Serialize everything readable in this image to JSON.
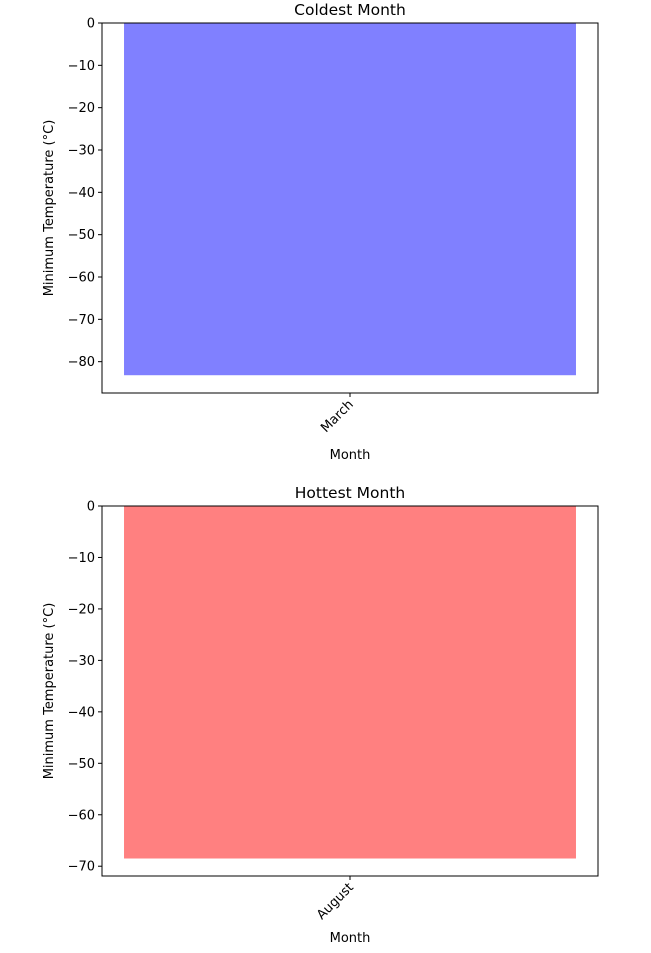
{
  "chart_data": [
    {
      "type": "bar",
      "title": "Coldest Month",
      "xlabel": "Month",
      "ylabel": "Minimum Temperature (°C)",
      "categories": [
        "March"
      ],
      "values": [
        -83.2
      ],
      "ylim": [
        -87.4,
        0
      ],
      "yticks": [
        0,
        -10,
        -20,
        -30,
        -40,
        -50,
        -60,
        -70,
        -80
      ],
      "ytick_labels": [
        "0",
        "−10",
        "−20",
        "−30",
        "−40",
        "−50",
        "−60",
        "−70",
        "−80"
      ],
      "bar_color": "#8080ff",
      "grid": false
    },
    {
      "type": "bar",
      "title": "Hottest Month",
      "xlabel": "Month",
      "ylabel": "Minimum Temperature (°C)",
      "categories": [
        "August"
      ],
      "values": [
        -68.5
      ],
      "ylim": [
        -71.9,
        0
      ],
      "yticks": [
        0,
        -10,
        -20,
        -30,
        -40,
        -50,
        -60,
        -70
      ],
      "ytick_labels": [
        "0",
        "−10",
        "−20",
        "−30",
        "−40",
        "−50",
        "−60",
        "−70"
      ],
      "bar_color": "#ff8080",
      "grid": false
    }
  ]
}
